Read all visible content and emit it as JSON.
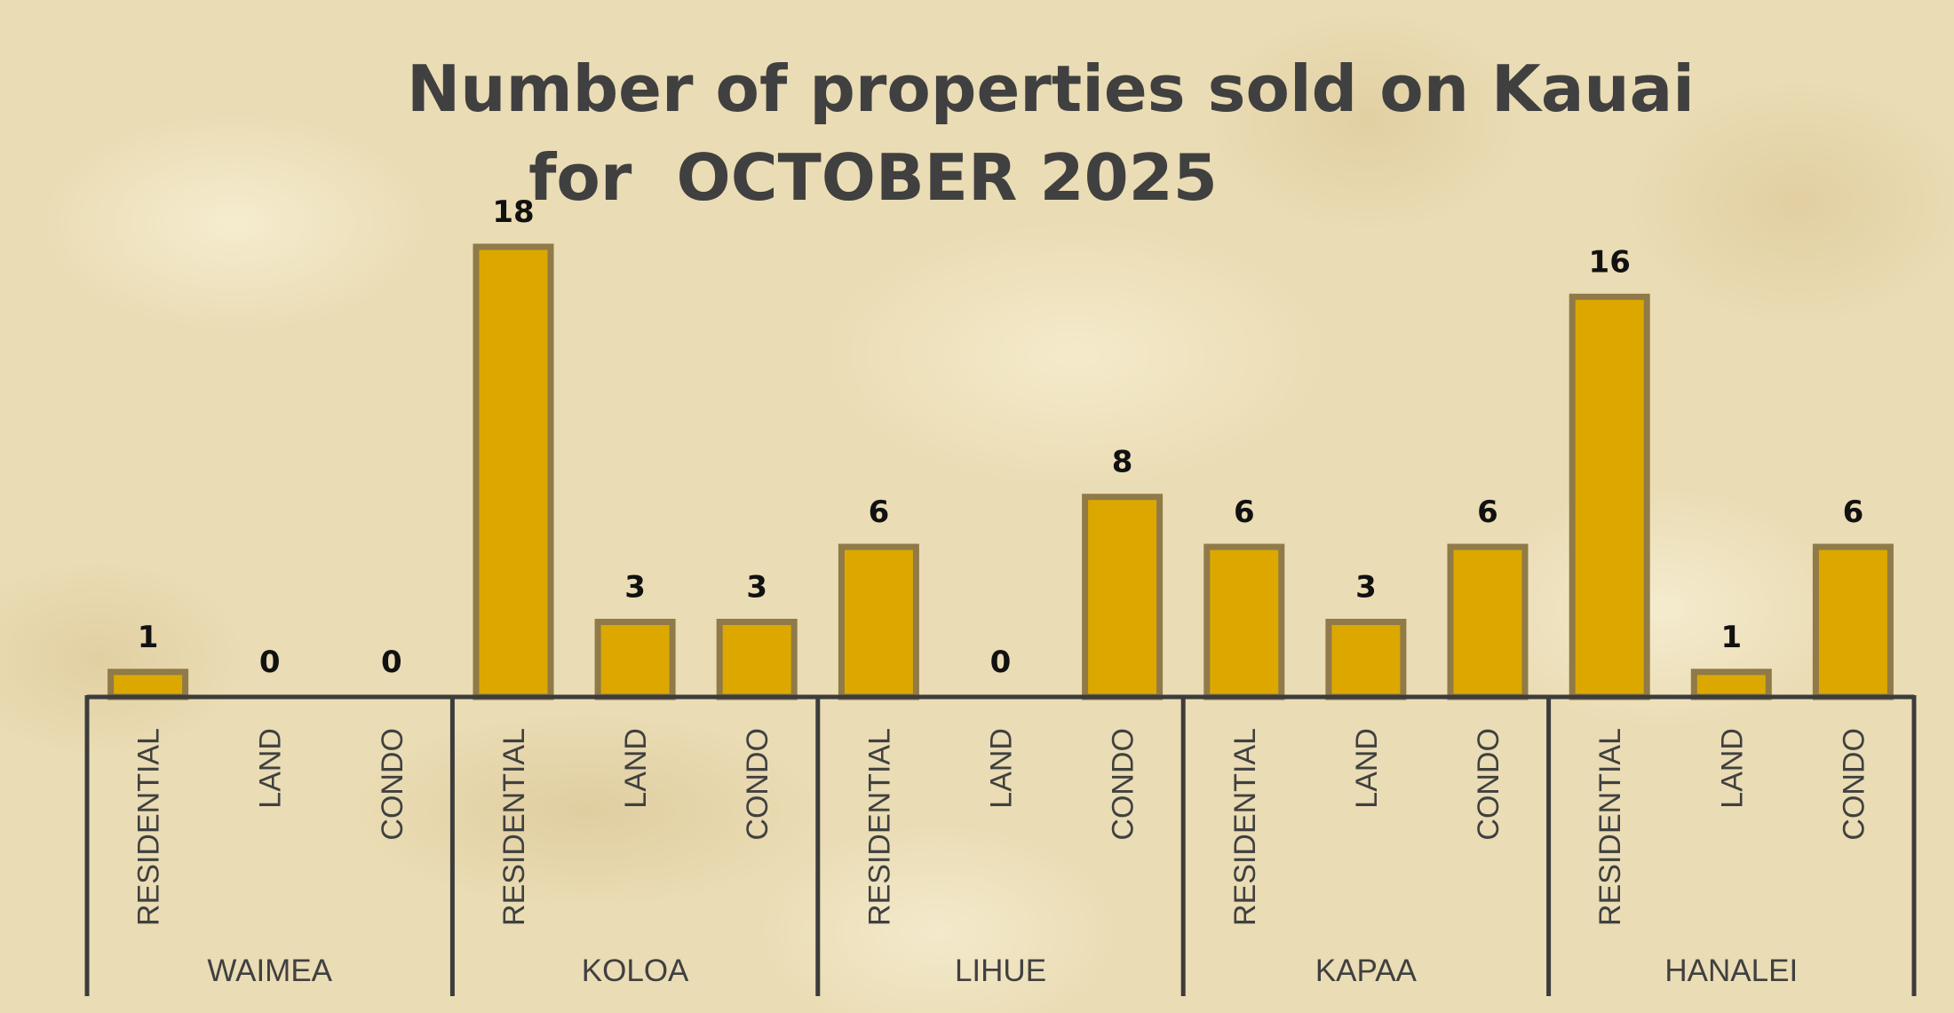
{
  "chart_data": {
    "type": "bar",
    "title_lines": [
      "Number of properties sold on Kauai",
      "for  OCTOBER 2025"
    ],
    "groups": [
      "WAIMEA",
      "KOLOA",
      "LIHUE",
      "KAPAA",
      "HANALEI"
    ],
    "subcategories": [
      "RESIDENTIAL",
      "LAND",
      "CONDO"
    ],
    "values": [
      [
        1,
        0,
        0
      ],
      [
        18,
        3,
        3
      ],
      [
        6,
        0,
        8
      ],
      [
        6,
        3,
        6
      ],
      [
        16,
        1,
        6
      ]
    ],
    "ylim": [
      0,
      18
    ],
    "grid": false,
    "legend": "none",
    "data_labels": true
  },
  "colors": {
    "bar_fill": "#dca800",
    "bar_stroke": "#8f7a48",
    "axis": "#3c3c3c",
    "text": "#404040"
  }
}
